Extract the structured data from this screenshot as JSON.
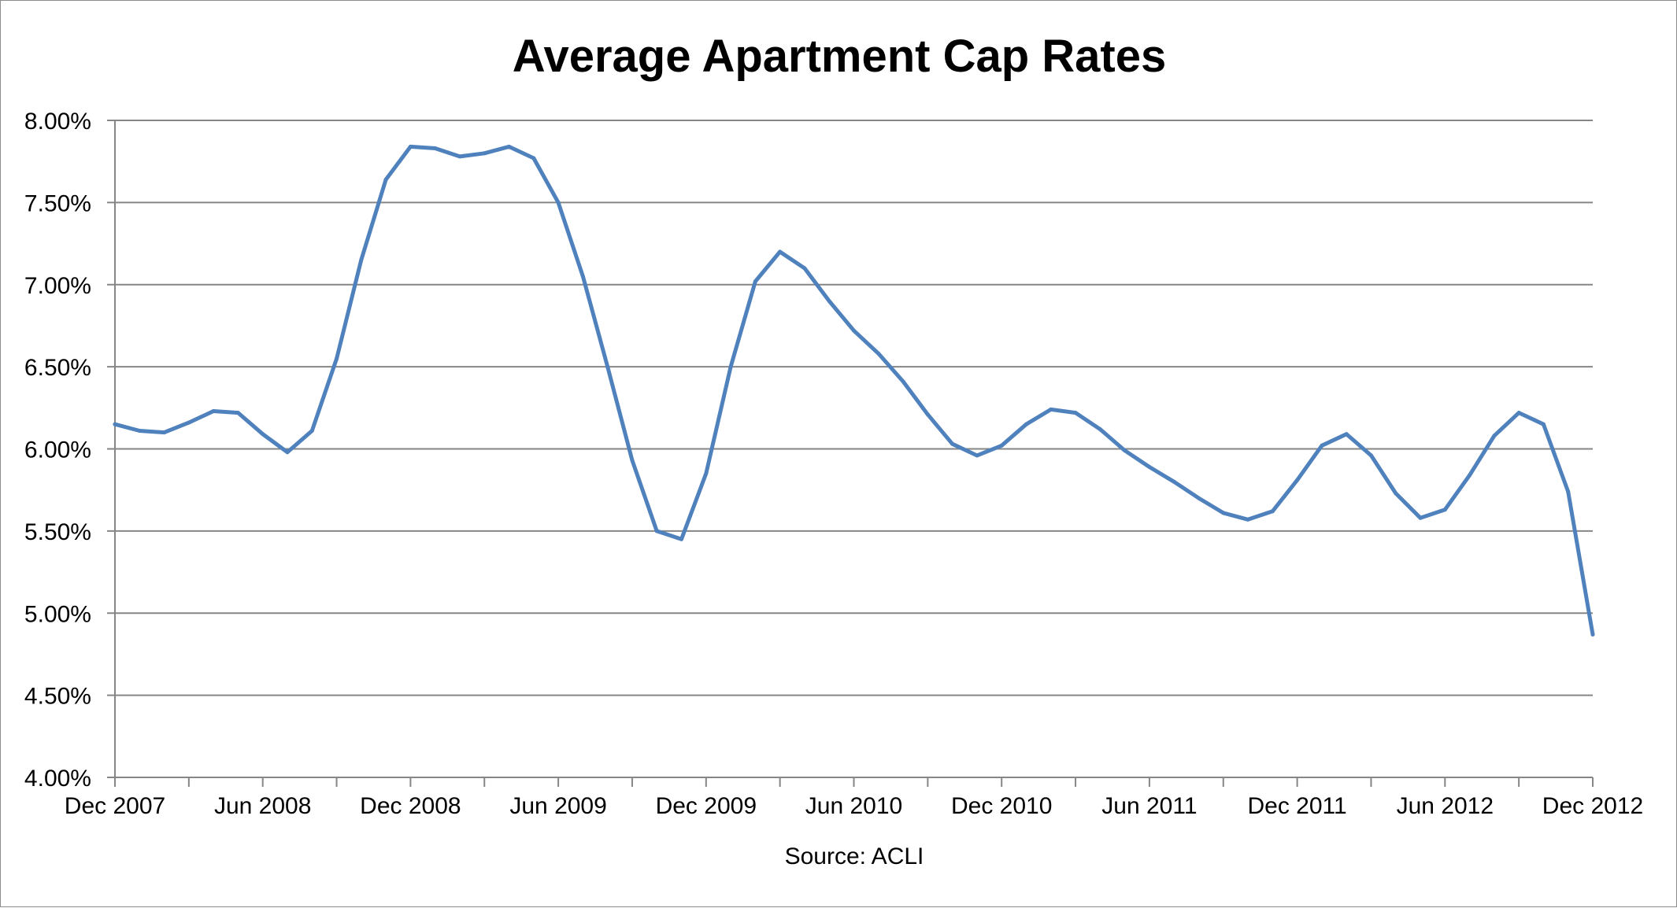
{
  "chart_data": {
    "type": "line",
    "title": "Average Apartment Cap Rates",
    "caption": "Source: ACLI",
    "xlabel": "",
    "ylabel": "",
    "ylim": [
      4.0,
      8.0
    ],
    "y_ticks": [
      "4.00%",
      "4.50%",
      "5.00%",
      "5.50%",
      "6.00%",
      "6.50%",
      "7.00%",
      "7.50%",
      "8.00%"
    ],
    "x_tick_labels": [
      "Dec 2007",
      "Jun 2008",
      "Dec 2008",
      "Jun 2009",
      "Dec 2009",
      "Jun 2010",
      "Dec 2010",
      "Jun 2011",
      "Dec 2011",
      "Jun 2012",
      "Dec 2012"
    ],
    "grid": "horizontal",
    "line_color": "#4f81bd",
    "series": [
      {
        "x": [
          "Dec 2007",
          "Jan 2008",
          "Feb 2008",
          "Mar 2008",
          "Apr 2008",
          "May 2008",
          "Jun 2008",
          "Jul 2008",
          "Aug 2008",
          "Sep 2008",
          "Oct 2008",
          "Nov 2008",
          "Dec 2008",
          "Jan 2009",
          "Feb 2009",
          "Mar 2009",
          "Apr 2009",
          "May 2009",
          "Jun 2009",
          "Jul 2009",
          "Aug 2009",
          "Sep 2009",
          "Oct 2009",
          "Nov 2009",
          "Dec 2009",
          "Jan 2010",
          "Feb 2010",
          "Mar 2010",
          "Apr 2010",
          "May 2010",
          "Jun 2010",
          "Jul 2010",
          "Aug 2010",
          "Sep 2010",
          "Oct 2010",
          "Nov 2010",
          "Dec 2010",
          "Jan 2011",
          "Feb 2011",
          "Mar 2011",
          "Apr 2011",
          "May 2011",
          "Jun 2011",
          "Jul 2011",
          "Aug 2011",
          "Sep 2011",
          "Oct 2011",
          "Nov 2011",
          "Dec 2011",
          "Jan 2012",
          "Feb 2012",
          "Mar 2012",
          "Apr 2012",
          "May 2012",
          "Jun 2012",
          "Jul 2012",
          "Aug 2012",
          "Sep 2012",
          "Oct 2012",
          "Nov 2012",
          "Dec 2012"
        ],
        "values": [
          6.15,
          6.11,
          6.1,
          6.16,
          6.23,
          6.22,
          6.09,
          5.98,
          6.11,
          6.55,
          7.15,
          7.64,
          7.84,
          7.83,
          7.78,
          7.8,
          7.84,
          7.77,
          7.5,
          7.05,
          6.5,
          5.93,
          5.5,
          5.45,
          5.85,
          6.5,
          7.02,
          7.2,
          7.1,
          6.9,
          6.72,
          6.58,
          6.41,
          6.21,
          6.03,
          5.96,
          6.02,
          6.15,
          6.24,
          6.22,
          6.12,
          5.99,
          5.89,
          5.8,
          5.7,
          5.61,
          5.57,
          5.62,
          5.81,
          6.02,
          6.09,
          5.96,
          5.73,
          5.58,
          5.63,
          5.84,
          6.08,
          6.22,
          6.15,
          5.74,
          4.87
        ]
      }
    ]
  }
}
